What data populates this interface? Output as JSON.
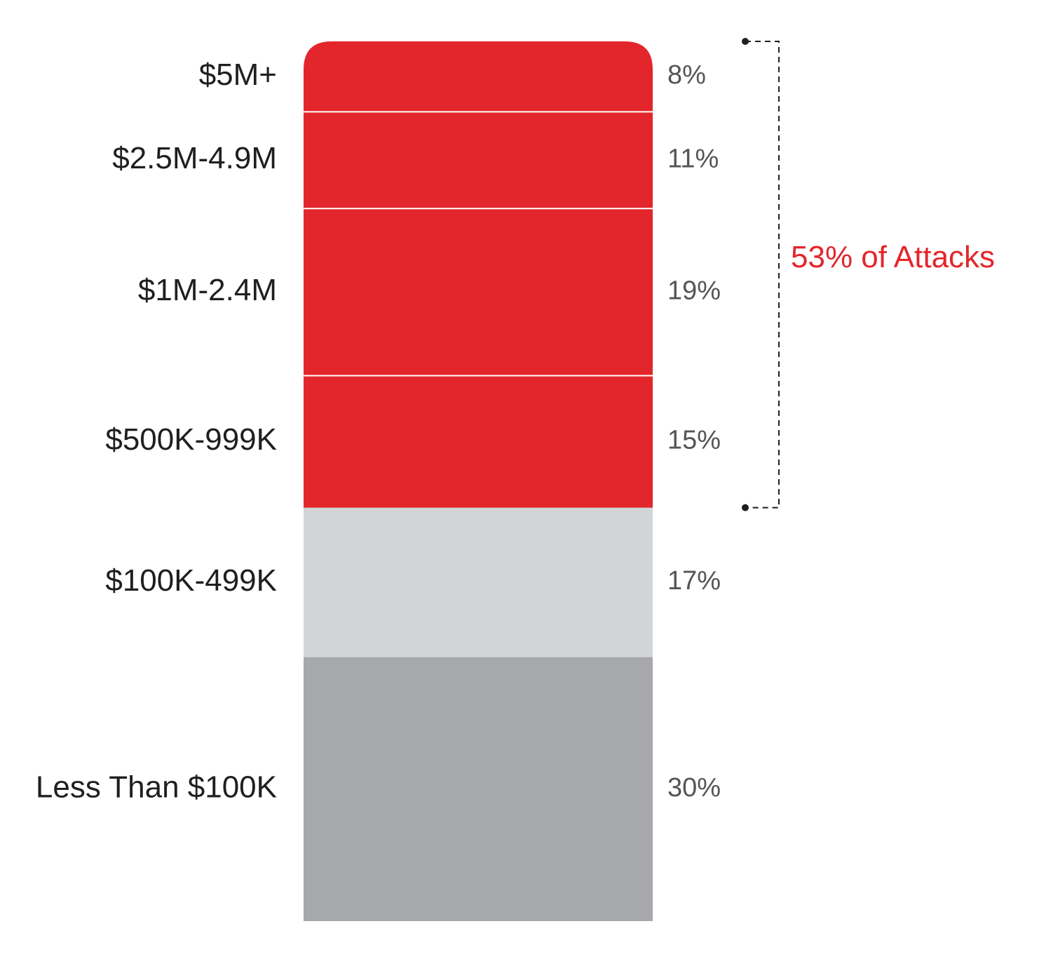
{
  "chart_data": {
    "type": "stacked_bar",
    "orientation": "vertical",
    "stack_order": "top-to-bottom",
    "value_unit": "%",
    "categories": [
      "$5M+",
      "$2.5M-4.9M",
      "$1M-2.4M",
      "$500K-999K",
      "$100K-499K",
      "Less Than $100K"
    ],
    "values": [
      8,
      11,
      19,
      15,
      17,
      30
    ],
    "value_labels": [
      "8%",
      "11%",
      "19%",
      "15%",
      "17%",
      "30%"
    ],
    "segment_colors": [
      "#e3262b",
      "#e3262b",
      "#e3262b",
      "#e3262b",
      "#d2d5d8",
      "#a7a8ab"
    ],
    "bracket": {
      "label": "53% of Attacks",
      "covers": [
        "$5M+",
        "$2.5M-4.9M",
        "$1M-2.4M",
        "$500K-999K"
      ],
      "color": "#e3262b"
    },
    "legend": "none",
    "grid": false
  }
}
